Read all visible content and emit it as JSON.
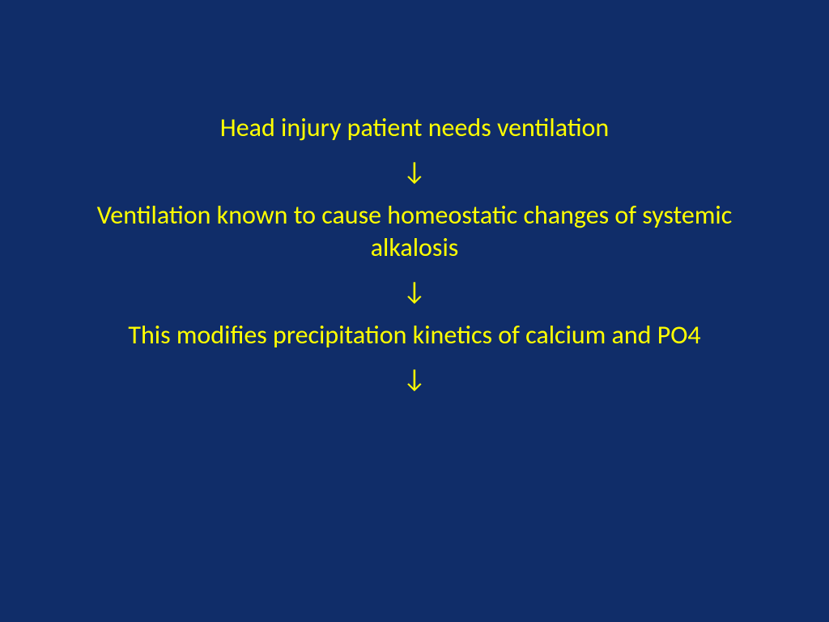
{
  "slide": {
    "background_color": "#102d69",
    "text_color": "#ffff00",
    "font_size_pt": 32,
    "font_family": "Calibri",
    "items": [
      {
        "type": "text",
        "content": "Head injury patient needs ventilation"
      },
      {
        "type": "arrow",
        "content": "↓"
      },
      {
        "type": "text",
        "content": "Ventilation known to cause homeostatic changes of systemic alkalosis"
      },
      {
        "type": "arrow",
        "content": "↓"
      },
      {
        "type": "text",
        "content": "This modifies precipitation kinetics of calcium and PO4"
      },
      {
        "type": "arrow",
        "content": "↓"
      }
    ]
  }
}
